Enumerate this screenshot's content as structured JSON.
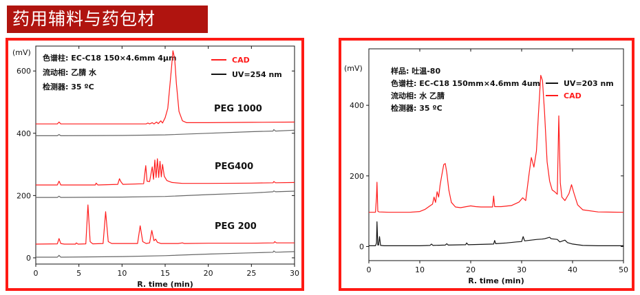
{
  "banner": {
    "title": "药用辅料与药包材"
  },
  "colors": {
    "red": "#ff1a1a",
    "black": "#111111",
    "gray": "#666666",
    "banner": "#b0140f",
    "frame": "#ff1a14"
  },
  "chart_data": [
    {
      "type": "line",
      "ylabel": "(mV)",
      "xlabel": "R. time (min)",
      "xlim": [
        0,
        30
      ],
      "ylim": [
        -20,
        680
      ],
      "xticks": [
        0,
        5,
        10,
        15,
        20,
        25,
        30
      ],
      "yticks": [
        0,
        200,
        400,
        600
      ],
      "info": [
        "色谱柱:  EC-C18  150×4.6mm  4μm",
        "流动相:  乙腈   水",
        "检测器:  35 ºC"
      ],
      "legend": [
        {
          "name": "CAD",
          "color": "#ff1a1a"
        },
        {
          "name": "UV=254 nm",
          "color": "#111111"
        }
      ],
      "legend_position": "top-right",
      "annotations": [
        "PEG 1000",
        "PEG400",
        "PEG 200"
      ],
      "series": [
        {
          "name": "CAD",
          "color": "#ff1a1a",
          "label": "PEG 1000",
          "points": [
            [
              0,
              430
            ],
            [
              2.5,
              430
            ],
            [
              2.7,
              436
            ],
            [
              2.9,
              430
            ],
            [
              12.8,
              430
            ],
            [
              13.0,
              433
            ],
            [
              13.2,
              430
            ],
            [
              13.5,
              434
            ],
            [
              13.7,
              430
            ],
            [
              14.0,
              436
            ],
            [
              14.2,
              431
            ],
            [
              14.5,
              440
            ],
            [
              14.7,
              433
            ],
            [
              15.0,
              450
            ],
            [
              15.3,
              480
            ],
            [
              15.5,
              540
            ],
            [
              15.75,
              615
            ],
            [
              15.9,
              665
            ],
            [
              16.1,
              640
            ],
            [
              16.3,
              560
            ],
            [
              16.6,
              470
            ],
            [
              17.0,
              440
            ],
            [
              17.5,
              434
            ],
            [
              20,
              434
            ],
            [
              25,
              435
            ],
            [
              30,
              436
            ]
          ]
        },
        {
          "name": "UV=254 nm",
          "color": "#666666",
          "label": "PEG 1000",
          "points": [
            [
              0,
              392
            ],
            [
              2.5,
              392
            ],
            [
              2.7,
              396
            ],
            [
              2.9,
              392
            ],
            [
              10,
              393
            ],
            [
              15,
              395
            ],
            [
              20,
              400
            ],
            [
              25,
              405
            ],
            [
              27.5,
              407
            ],
            [
              27.6,
              412
            ],
            [
              27.8,
              407
            ],
            [
              30,
              410
            ]
          ]
        },
        {
          "name": "CAD",
          "color": "#ff1a1a",
          "label": "PEG400",
          "points": [
            [
              0,
              234
            ],
            [
              2.5,
              234
            ],
            [
              2.7,
              246
            ],
            [
              2.9,
              234
            ],
            [
              6.9,
              234
            ],
            [
              7.0,
              240
            ],
            [
              7.2,
              234
            ],
            [
              9.5,
              236
            ],
            [
              9.7,
              254
            ],
            [
              9.85,
              245
            ],
            [
              10.1,
              236
            ],
            [
              12.5,
              238
            ],
            [
              12.75,
              296
            ],
            [
              12.9,
              246
            ],
            [
              13.2,
              245
            ],
            [
              13.5,
              292
            ],
            [
              13.65,
              252
            ],
            [
              13.8,
              314
            ],
            [
              13.95,
              258
            ],
            [
              14.1,
              318
            ],
            [
              14.25,
              258
            ],
            [
              14.4,
              310
            ],
            [
              14.55,
              260
            ],
            [
              14.7,
              300
            ],
            [
              14.9,
              262
            ],
            [
              15.2,
              248
            ],
            [
              15.8,
              242
            ],
            [
              17,
              239
            ],
            [
              20,
              239
            ],
            [
              25,
              240
            ],
            [
              27.5,
              241
            ],
            [
              27.6,
              245
            ],
            [
              27.8,
              241
            ],
            [
              30,
              242
            ]
          ]
        },
        {
          "name": "UV=254 nm",
          "color": "#666666",
          "label": "PEG400",
          "points": [
            [
              0,
              194
            ],
            [
              2.5,
              194
            ],
            [
              2.7,
              198
            ],
            [
              2.9,
              194
            ],
            [
              10,
              195
            ],
            [
              15,
              197
            ],
            [
              20,
              203
            ],
            [
              25,
              208
            ],
            [
              27.5,
              212
            ],
            [
              27.6,
              215
            ],
            [
              27.8,
              212
            ],
            [
              30,
              214
            ]
          ]
        },
        {
          "name": "CAD",
          "color": "#ff1a1a",
          "label": "PEG 200",
          "points": [
            [
              0,
              44
            ],
            [
              2.5,
              45
            ],
            [
              2.7,
              62
            ],
            [
              2.9,
              46
            ],
            [
              3.3,
              44
            ],
            [
              4.6,
              44
            ],
            [
              4.7,
              48
            ],
            [
              4.9,
              44
            ],
            [
              5.8,
              45
            ],
            [
              6.05,
              170
            ],
            [
              6.3,
              52
            ],
            [
              6.6,
              45
            ],
            [
              7.8,
              46
            ],
            [
              8.1,
              148
            ],
            [
              8.4,
              52
            ],
            [
              8.8,
              46
            ],
            [
              11.8,
              46
            ],
            [
              12.1,
              103
            ],
            [
              12.4,
              52
            ],
            [
              12.8,
              46
            ],
            [
              13.2,
              48
            ],
            [
              13.45,
              88
            ],
            [
              13.7,
              55
            ],
            [
              13.9,
              60
            ],
            [
              14.1,
              50
            ],
            [
              14.5,
              46
            ],
            [
              16.5,
              46
            ],
            [
              17,
              48
            ],
            [
              17.2,
              46
            ],
            [
              20,
              47
            ],
            [
              25,
              47
            ],
            [
              27.6,
              48
            ],
            [
              27.7,
              52
            ],
            [
              27.9,
              48
            ],
            [
              30,
              48
            ]
          ]
        },
        {
          "name": "UV=254 nm",
          "color": "#666666",
          "label": "PEG 200",
          "points": [
            [
              0,
              2
            ],
            [
              2.5,
              2
            ],
            [
              2.7,
              8
            ],
            [
              2.9,
              2
            ],
            [
              10,
              4
            ],
            [
              15,
              7
            ],
            [
              20,
              12
            ],
            [
              25,
              16
            ],
            [
              27.5,
              18
            ],
            [
              27.6,
              22
            ],
            [
              27.8,
              18
            ],
            [
              30,
              20
            ]
          ]
        }
      ]
    },
    {
      "type": "line",
      "title": "",
      "ylabel": "(mV)",
      "xlabel": "R. time (min)",
      "xlim": [
        0,
        50
      ],
      "ylim": [
        -40,
        560
      ],
      "xticks": [
        0,
        10,
        20,
        30,
        40,
        50
      ],
      "yticks": [
        0,
        200,
        400
      ],
      "info": [
        "样品:  吐温-80",
        "色谱柱:  EC-C18  150mm×4.6mm  4um",
        "流动相:  水  乙腈",
        "检测器:  35 ºC"
      ],
      "legend": [
        {
          "name": "UV=203 nm",
          "color": "#111111"
        },
        {
          "name": "CAD",
          "color": "#ff1a1a"
        }
      ],
      "legend_position": "top-right",
      "series": [
        {
          "name": "UV=203 nm",
          "color": "#111111",
          "points": [
            [
              0,
              2
            ],
            [
              1.3,
              2
            ],
            [
              1.5,
              10
            ],
            [
              1.6,
              70
            ],
            [
              1.75,
              4
            ],
            [
              1.9,
              4
            ],
            [
              2.1,
              28
            ],
            [
              2.3,
              3
            ],
            [
              3,
              2
            ],
            [
              5,
              2
            ],
            [
              10,
              2
            ],
            [
              12,
              3
            ],
            [
              12.3,
              7
            ],
            [
              12.6,
              3
            ],
            [
              15,
              4
            ],
            [
              15.3,
              8
            ],
            [
              15.6,
              4
            ],
            [
              19,
              5
            ],
            [
              19.2,
              10
            ],
            [
              19.5,
              5
            ],
            [
              24.5,
              7
            ],
            [
              24.7,
              17
            ],
            [
              24.9,
              8
            ],
            [
              27,
              10
            ],
            [
              29,
              13
            ],
            [
              30,
              14
            ],
            [
              30.3,
              28
            ],
            [
              30.6,
              16
            ],
            [
              33,
              20
            ],
            [
              34,
              21
            ],
            [
              34.5,
              22
            ],
            [
              35.5,
              26
            ],
            [
              35.8,
              22
            ],
            [
              37,
              20
            ],
            [
              37.5,
              13
            ],
            [
              38.5,
              18
            ],
            [
              39,
              11
            ],
            [
              40,
              7
            ],
            [
              42,
              3
            ],
            [
              45,
              2
            ],
            [
              50,
              2
            ]
          ]
        },
        {
          "name": "CAD",
          "color": "#ff1a1a",
          "points": [
            [
              0,
              97
            ],
            [
              1.3,
              97
            ],
            [
              1.5,
              140
            ],
            [
              1.6,
              182
            ],
            [
              1.75,
              100
            ],
            [
              2,
              98
            ],
            [
              4,
              97
            ],
            [
              8,
              97
            ],
            [
              10,
              99
            ],
            [
              11,
              105
            ],
            [
              12,
              115
            ],
            [
              12.5,
              120
            ],
            [
              12.8,
              140
            ],
            [
              13.1,
              125
            ],
            [
              13.4,
              155
            ],
            [
              13.7,
              140
            ],
            [
              14.0,
              175
            ],
            [
              14.3,
              200
            ],
            [
              14.7,
              232
            ],
            [
              15.0,
              235
            ],
            [
              15.3,
              210
            ],
            [
              15.7,
              160
            ],
            [
              16.2,
              125
            ],
            [
              17,
              112
            ],
            [
              18,
              110
            ],
            [
              20,
              115
            ],
            [
              21,
              113
            ],
            [
              22,
              112
            ],
            [
              24.3,
              112
            ],
            [
              24.5,
              143
            ],
            [
              24.7,
              113
            ],
            [
              26,
              113
            ],
            [
              28,
              116
            ],
            [
              29.5,
              126
            ],
            [
              30.2,
              138
            ],
            [
              30.8,
              130
            ],
            [
              31.5,
              210
            ],
            [
              31.9,
              252
            ],
            [
              32.4,
              225
            ],
            [
              32.9,
              270
            ],
            [
              33.3,
              375
            ],
            [
              33.75,
              485
            ],
            [
              34.1,
              470
            ],
            [
              34.5,
              380
            ],
            [
              35,
              240
            ],
            [
              35.5,
              185
            ],
            [
              36,
              160
            ],
            [
              36.5,
              155
            ],
            [
              37.0,
              148
            ],
            [
              37.3,
              370
            ],
            [
              37.6,
              180
            ],
            [
              37.9,
              140
            ],
            [
              38.5,
              130
            ],
            [
              39.3,
              150
            ],
            [
              39.8,
              175
            ],
            [
              40.3,
              150
            ],
            [
              41,
              118
            ],
            [
              42,
              104
            ],
            [
              45,
              98
            ],
            [
              50,
              97
            ]
          ]
        }
      ]
    }
  ]
}
